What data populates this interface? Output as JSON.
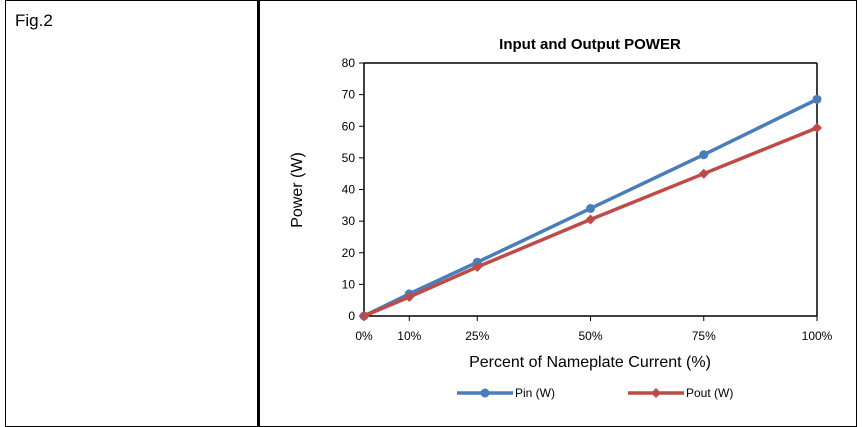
{
  "figure_label": "Fig.2",
  "chart_data": {
    "type": "line",
    "title": "Input and Output POWER",
    "xlabel": "Percent of Nameplate Current (%)",
    "ylabel": "Power (W)",
    "categories": [
      "0%",
      "10%",
      "25%",
      "50%",
      "75%",
      "100%"
    ],
    "x": [
      0,
      10,
      25,
      50,
      75,
      100
    ],
    "ylim": [
      0,
      80
    ],
    "yticks": [
      "0",
      "10",
      "20",
      "30",
      "40",
      "50",
      "60",
      "70",
      "80"
    ],
    "grid": false,
    "legend_position": "bottom",
    "series": [
      {
        "name": "Pin (W)",
        "marker": "circle",
        "color": "#4a7ebb",
        "values": [
          0,
          7,
          17,
          34,
          51,
          68.5
        ]
      },
      {
        "name": "Pout (W)",
        "marker": "diamond",
        "color": "#be4b48",
        "values": [
          0,
          6,
          15.5,
          30.5,
          45,
          59.5
        ]
      }
    ]
  }
}
